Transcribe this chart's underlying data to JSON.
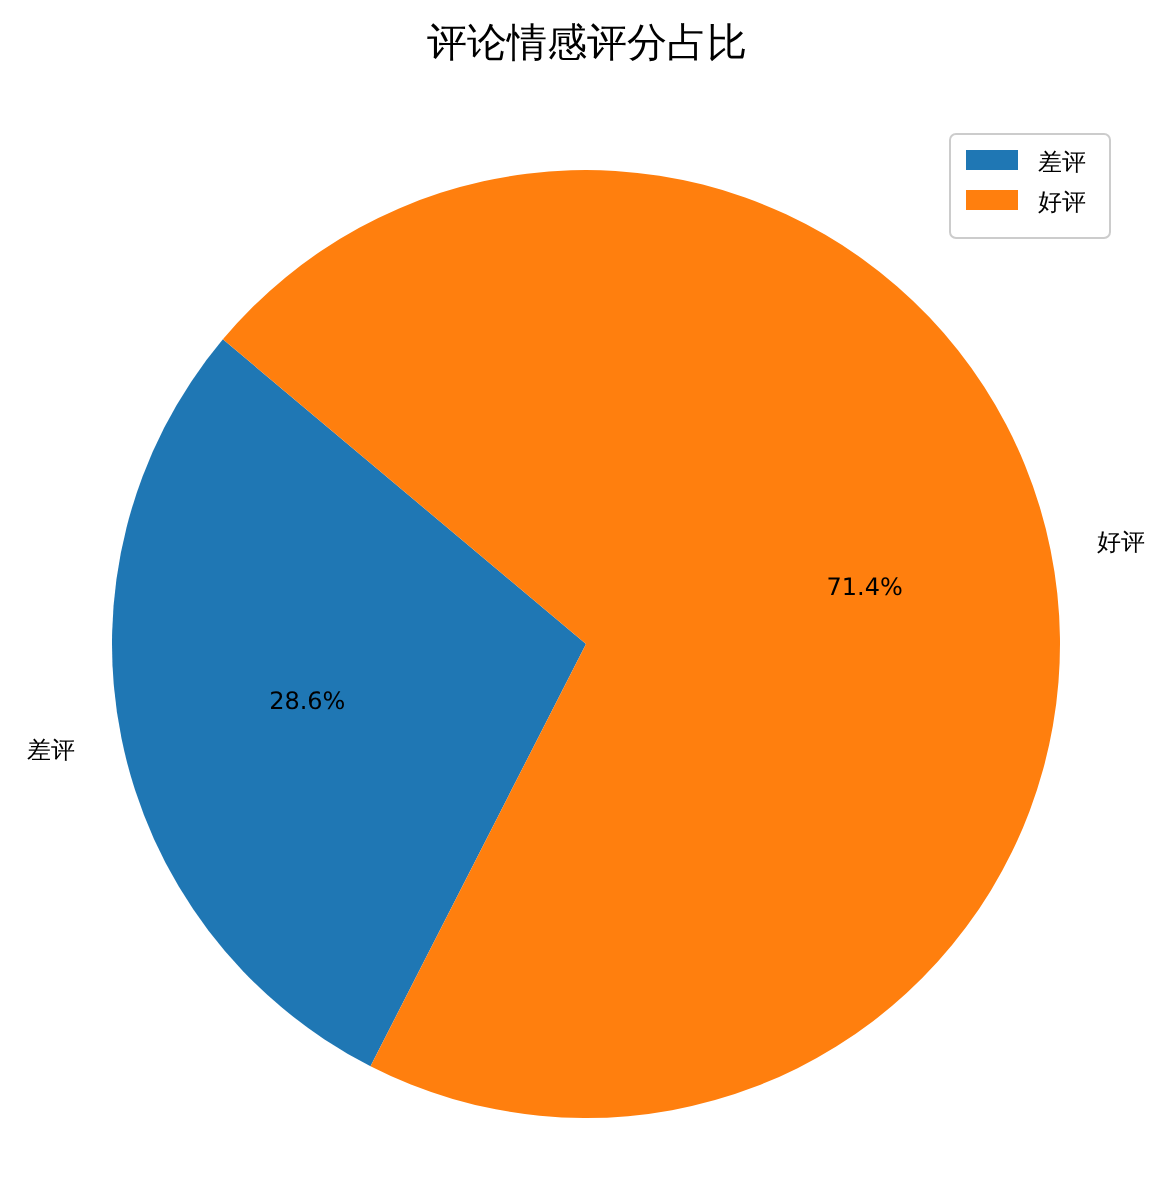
{
  "chart_data": {
    "type": "pie",
    "title": "评论情感评分占比",
    "categories": [
      "差评",
      "好评"
    ],
    "values": [
      28.6,
      71.4
    ],
    "colors": [
      "#1f77b4",
      "#ff7f0e"
    ],
    "value_labels": [
      "28.6%",
      "71.4%"
    ],
    "legend": "top right"
  }
}
